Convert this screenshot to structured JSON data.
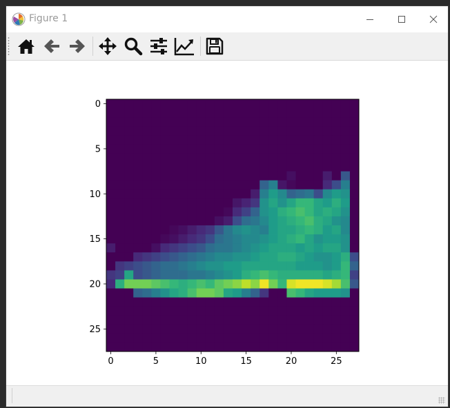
{
  "window": {
    "title": "Figure 1",
    "controls": {
      "minimize": "minimize",
      "maximize": "maximize",
      "close": "close"
    }
  },
  "toolbar": {
    "buttons": [
      {
        "name": "home-button",
        "icon": "home-icon",
        "tooltip": "Reset original view"
      },
      {
        "name": "back-button",
        "icon": "arrow-left-icon",
        "tooltip": "Back to previous view"
      },
      {
        "name": "forward-button",
        "icon": "arrow-right-icon",
        "tooltip": "Forward to next view"
      },
      {
        "name": "pan-button",
        "icon": "move-icon",
        "tooltip": "Pan axes"
      },
      {
        "name": "zoom-button",
        "icon": "magnifier-icon",
        "tooltip": "Zoom to rectangle"
      },
      {
        "name": "subplots-button",
        "icon": "sliders-icon",
        "tooltip": "Configure subplots"
      },
      {
        "name": "edit-axis-button",
        "icon": "line-chart-icon",
        "tooltip": "Edit axis"
      },
      {
        "name": "save-button",
        "icon": "floppy-disk-icon",
        "tooltip": "Save the figure"
      }
    ]
  },
  "colors": {
    "viridis": [
      "#440154",
      "#482878",
      "#3e4989",
      "#31688e",
      "#26828e",
      "#1f9e89",
      "#35b779",
      "#6ece58",
      "#b5de2b",
      "#fde725"
    ]
  },
  "chart_data": {
    "type": "heatmap",
    "title": "",
    "xlabel": "",
    "ylabel": "",
    "rows": 28,
    "cols": 28,
    "xticks": [
      0,
      5,
      10,
      15,
      20,
      25
    ],
    "yticks": [
      0,
      5,
      10,
      15,
      20,
      25
    ],
    "colormap": "viridis",
    "value_range": [
      0,
      255
    ],
    "values": [
      [
        0,
        0,
        0,
        0,
        0,
        0,
        0,
        0,
        0,
        0,
        0,
        0,
        0,
        0,
        0,
        0,
        0,
        0,
        0,
        0,
        0,
        0,
        0,
        0,
        0,
        0,
        0,
        0
      ],
      [
        0,
        0,
        0,
        0,
        0,
        0,
        0,
        0,
        0,
        0,
        0,
        0,
        0,
        0,
        0,
        0,
        0,
        0,
        0,
        0,
        0,
        0,
        0,
        0,
        0,
        0,
        0,
        0
      ],
      [
        0,
        0,
        0,
        0,
        0,
        0,
        0,
        0,
        0,
        0,
        0,
        0,
        0,
        0,
        0,
        0,
        0,
        0,
        0,
        0,
        0,
        0,
        0,
        0,
        0,
        0,
        0,
        0
      ],
      [
        0,
        0,
        0,
        0,
        0,
        0,
        0,
        0,
        0,
        0,
        0,
        0,
        0,
        0,
        0,
        0,
        0,
        0,
        0,
        0,
        0,
        0,
        0,
        0,
        0,
        0,
        0,
        0
      ],
      [
        0,
        0,
        0,
        0,
        0,
        0,
        0,
        0,
        0,
        0,
        0,
        0,
        0,
        0,
        0,
        0,
        0,
        0,
        0,
        0,
        0,
        0,
        0,
        0,
        0,
        0,
        0,
        0
      ],
      [
        0,
        0,
        0,
        0,
        0,
        0,
        0,
        0,
        0,
        0,
        0,
        0,
        0,
        0,
        0,
        0,
        0,
        0,
        0,
        0,
        0,
        0,
        0,
        0,
        0,
        0,
        0,
        0
      ],
      [
        0,
        0,
        0,
        0,
        0,
        0,
        0,
        0,
        0,
        0,
        0,
        0,
        0,
        0,
        0,
        0,
        0,
        0,
        0,
        0,
        0,
        0,
        0,
        0,
        0,
        0,
        0,
        0
      ],
      [
        0,
        0,
        0,
        0,
        0,
        0,
        0,
        0,
        0,
        0,
        0,
        0,
        0,
        0,
        0,
        0,
        0,
        0,
        0,
        0,
        0,
        0,
        0,
        0,
        0,
        0,
        0,
        0
      ],
      [
        0,
        0,
        0,
        0,
        0,
        0,
        0,
        0,
        0,
        0,
        0,
        0,
        0,
        0,
        0,
        0,
        0,
        0,
        0,
        0,
        10,
        0,
        0,
        0,
        20,
        0,
        70,
        0
      ],
      [
        0,
        0,
        0,
        0,
        0,
        0,
        0,
        0,
        0,
        0,
        0,
        0,
        0,
        0,
        0,
        0,
        0,
        80,
        110,
        15,
        5,
        0,
        0,
        0,
        30,
        60,
        110,
        0
      ],
      [
        0,
        0,
        0,
        0,
        0,
        0,
        0,
        0,
        0,
        0,
        0,
        0,
        0,
        0,
        0,
        0,
        20,
        110,
        140,
        120,
        80,
        90,
        100,
        60,
        120,
        140,
        130,
        0
      ],
      [
        0,
        0,
        0,
        0,
        0,
        0,
        0,
        0,
        0,
        0,
        0,
        0,
        0,
        0,
        15,
        25,
        40,
        130,
        150,
        130,
        150,
        170,
        170,
        150,
        140,
        160,
        140,
        0
      ],
      [
        0,
        0,
        0,
        0,
        0,
        0,
        0,
        0,
        0,
        0,
        0,
        0,
        0,
        5,
        30,
        50,
        80,
        130,
        140,
        160,
        170,
        180,
        170,
        150,
        160,
        150,
        130,
        0
      ],
      [
        0,
        0,
        0,
        0,
        0,
        0,
        0,
        0,
        0,
        0,
        0,
        0,
        10,
        20,
        60,
        90,
        100,
        120,
        140,
        150,
        160,
        170,
        180,
        160,
        150,
        130,
        120,
        0
      ],
      [
        0,
        0,
        0,
        0,
        0,
        0,
        0,
        5,
        10,
        20,
        30,
        40,
        70,
        100,
        120,
        130,
        120,
        110,
        140,
        150,
        150,
        160,
        170,
        160,
        140,
        150,
        120,
        0
      ],
      [
        0,
        0,
        0,
        0,
        0,
        0,
        5,
        10,
        20,
        30,
        40,
        60,
        90,
        100,
        110,
        120,
        120,
        130,
        140,
        150,
        160,
        170,
        150,
        130,
        140,
        140,
        130,
        0
      ],
      [
        20,
        0,
        0,
        0,
        0,
        10,
        30,
        40,
        50,
        60,
        70,
        90,
        100,
        100,
        110,
        120,
        130,
        140,
        150,
        150,
        150,
        140,
        150,
        140,
        150,
        150,
        130,
        0
      ],
      [
        0,
        0,
        0,
        30,
        40,
        50,
        60,
        70,
        80,
        90,
        100,
        110,
        120,
        120,
        130,
        130,
        140,
        150,
        150,
        160,
        160,
        150,
        140,
        130,
        130,
        140,
        160,
        60
      ],
      [
        0,
        40,
        50,
        60,
        70,
        80,
        90,
        90,
        100,
        110,
        120,
        130,
        130,
        140,
        140,
        150,
        150,
        150,
        150,
        150,
        150,
        140,
        140,
        140,
        130,
        140,
        170,
        80
      ],
      [
        40,
        50,
        150,
        60,
        70,
        80,
        90,
        90,
        90,
        100,
        100,
        110,
        120,
        130,
        140,
        160,
        170,
        180,
        170,
        160,
        160,
        160,
        160,
        160,
        150,
        160,
        170,
        50
      ],
      [
        30,
        160,
        200,
        200,
        200,
        190,
        180,
        170,
        160,
        170,
        180,
        170,
        190,
        200,
        210,
        230,
        210,
        250,
        200,
        170,
        240,
        250,
        250,
        250,
        240,
        220,
        180,
        70
      ],
      [
        0,
        0,
        0,
        80,
        90,
        110,
        130,
        150,
        160,
        180,
        200,
        200,
        190,
        150,
        140,
        110,
        80,
        40,
        0,
        0,
        180,
        170,
        150,
        140,
        140,
        140,
        130,
        0
      ],
      [
        0,
        0,
        0,
        0,
        0,
        0,
        0,
        0,
        0,
        0,
        0,
        0,
        0,
        0,
        0,
        0,
        0,
        0,
        0,
        0,
        0,
        0,
        0,
        0,
        0,
        0,
        0,
        0
      ],
      [
        0,
        0,
        0,
        0,
        0,
        0,
        0,
        0,
        0,
        0,
        0,
        0,
        0,
        0,
        0,
        0,
        0,
        0,
        0,
        0,
        0,
        0,
        0,
        0,
        0,
        0,
        0,
        0
      ],
      [
        0,
        0,
        0,
        0,
        0,
        0,
        0,
        0,
        0,
        0,
        0,
        0,
        0,
        0,
        0,
        0,
        0,
        0,
        0,
        0,
        0,
        0,
        0,
        0,
        0,
        0,
        0,
        0
      ],
      [
        0,
        0,
        0,
        0,
        0,
        0,
        0,
        0,
        0,
        0,
        0,
        0,
        0,
        0,
        0,
        0,
        0,
        0,
        0,
        0,
        0,
        0,
        0,
        0,
        0,
        0,
        0,
        0
      ],
      [
        0,
        0,
        0,
        0,
        0,
        0,
        0,
        0,
        0,
        0,
        0,
        0,
        0,
        0,
        0,
        0,
        0,
        0,
        0,
        0,
        0,
        0,
        0,
        0,
        0,
        0,
        0,
        0
      ],
      [
        0,
        0,
        0,
        0,
        0,
        0,
        0,
        0,
        0,
        0,
        0,
        0,
        0,
        0,
        0,
        0,
        0,
        0,
        0,
        0,
        0,
        0,
        0,
        0,
        0,
        0,
        0,
        0
      ]
    ]
  }
}
